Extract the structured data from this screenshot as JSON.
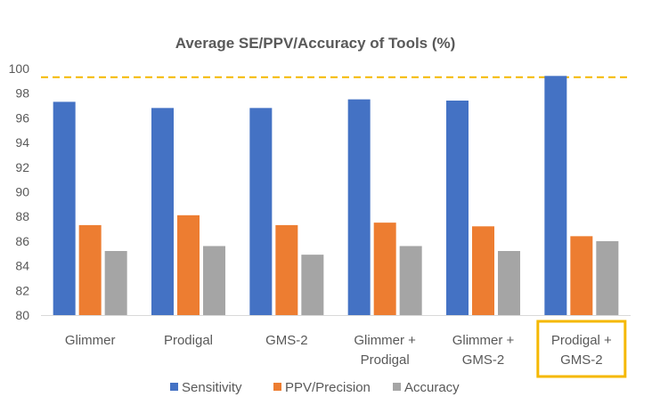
{
  "chart_data": {
    "type": "bar",
    "title": "Average SE/PPV/Accuracy of Tools (%)",
    "xlabel": "",
    "ylabel": "",
    "ylim": [
      80,
      100
    ],
    "yticks": [
      80,
      82,
      84,
      86,
      88,
      90,
      92,
      94,
      96,
      98,
      100
    ],
    "grid": false,
    "legend_position": "bottom",
    "categories": [
      [
        "Glimmer"
      ],
      [
        "Prodigal"
      ],
      [
        "GMS-2"
      ],
      [
        "Glimmer +",
        "Prodigal"
      ],
      [
        "Glimmer +",
        "GMS-2"
      ],
      [
        "Prodigal +",
        "GMS-2"
      ]
    ],
    "series": [
      {
        "name": "Sensitivity",
        "color": "#4472C4",
        "values": [
          97.3,
          96.8,
          96.8,
          97.5,
          97.4,
          99.4
        ]
      },
      {
        "name": "PPV/Precision",
        "color": "#ED7D31",
        "values": [
          87.3,
          88.1,
          87.3,
          87.5,
          87.2,
          86.4
        ]
      },
      {
        "name": "Accuracy",
        "color": "#A5A5A5",
        "values": [
          85.2,
          85.6,
          84.9,
          85.6,
          85.2,
          86.0
        ]
      }
    ],
    "reference_line": {
      "value": 99.3,
      "color": "#F5B800",
      "style": "dashed"
    },
    "highlight": {
      "category_index": 5,
      "color": "#F5B800"
    }
  }
}
